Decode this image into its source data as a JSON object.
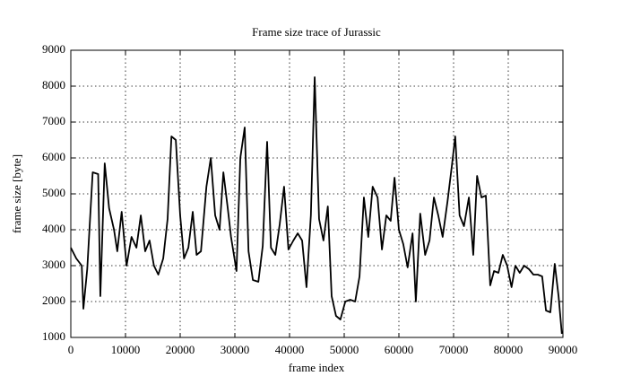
{
  "chart_data": {
    "type": "line",
    "title": "Frame size trace of Jurassic",
    "x_label": "frame index",
    "y_label": "frame size [byte]",
    "x": [
      0,
      1000,
      2000,
      2300,
      3000,
      4000,
      5000,
      5400,
      6200,
      7000,
      7900,
      8500,
      9300,
      10200,
      11100,
      12000,
      12800,
      13600,
      14400,
      15200,
      16000,
      16900,
      17700,
      18400,
      19200,
      20000,
      20700,
      21500,
      22300,
      23000,
      23800,
      24800,
      25600,
      26400,
      27200,
      27900,
      28700,
      29300,
      30300,
      31000,
      31800,
      32500,
      33300,
      34300,
      35100,
      35900,
      36600,
      37400,
      38200,
      39000,
      39800,
      40700,
      41500,
      42300,
      43100,
      43900,
      44600,
      45400,
      46200,
      47000,
      47700,
      48500,
      49300,
      50200,
      51100,
      52000,
      52800,
      53600,
      54400,
      55200,
      56100,
      56900,
      57700,
      58500,
      59200,
      60000,
      60800,
      61600,
      62500,
      63100,
      63900,
      64800,
      65600,
      66400,
      67200,
      68000,
      68900,
      69700,
      70300,
      71100,
      71900,
      72800,
      73600,
      74300,
      75100,
      75900,
      76700,
      77400,
      78200,
      79000,
      79800,
      80600,
      81300,
      82100,
      82900,
      83800,
      84600,
      85400,
      86200,
      86900,
      87700,
      88500,
      89200,
      89800
    ],
    "series": [
      {
        "color": "#000000",
        "values": [
          3500,
          3200,
          3000,
          1800,
          2900,
          5600,
          5550,
          2150,
          5850,
          4600,
          4000,
          3400,
          4500,
          3000,
          3800,
          3500,
          4400,
          3400,
          3700,
          3000,
          2750,
          3200,
          4300,
          6600,
          6500,
          4400,
          3200,
          3500,
          4500,
          3300,
          3400,
          5200,
          6000,
          4400,
          4000,
          5600,
          4600,
          3800,
          2850,
          6000,
          6850,
          3400,
          2600,
          2550,
          3550,
          6450,
          3500,
          3300,
          4150,
          5200,
          3450,
          3700,
          3900,
          3700,
          2400,
          4400,
          8250,
          4300,
          3700,
          4650,
          2150,
          1600,
          1500,
          2000,
          2050,
          2000,
          2700,
          4900,
          3800,
          5200,
          4900,
          3450,
          4400,
          4250,
          5450,
          4000,
          3600,
          2950,
          3900,
          2000,
          4450,
          3300,
          3700,
          4900,
          4400,
          3800,
          4800,
          5800,
          6600,
          4400,
          4100,
          4900,
          3300,
          5500,
          4900,
          4950,
          2450,
          2850,
          2800,
          3300,
          3000,
          2400,
          3000,
          2800,
          3000,
          2900,
          2750,
          2750,
          2700,
          1750,
          1700,
          3050,
          2150,
          1100
        ]
      }
    ],
    "xlim": [
      0,
      90000
    ],
    "ylim": [
      1000,
      9000
    ],
    "xticks": [
      0,
      10000,
      20000,
      30000,
      40000,
      50000,
      60000,
      70000,
      80000,
      90000
    ],
    "yticks": [
      1000,
      2000,
      3000,
      4000,
      5000,
      6000,
      7000,
      8000,
      9000
    ],
    "grid": true
  }
}
